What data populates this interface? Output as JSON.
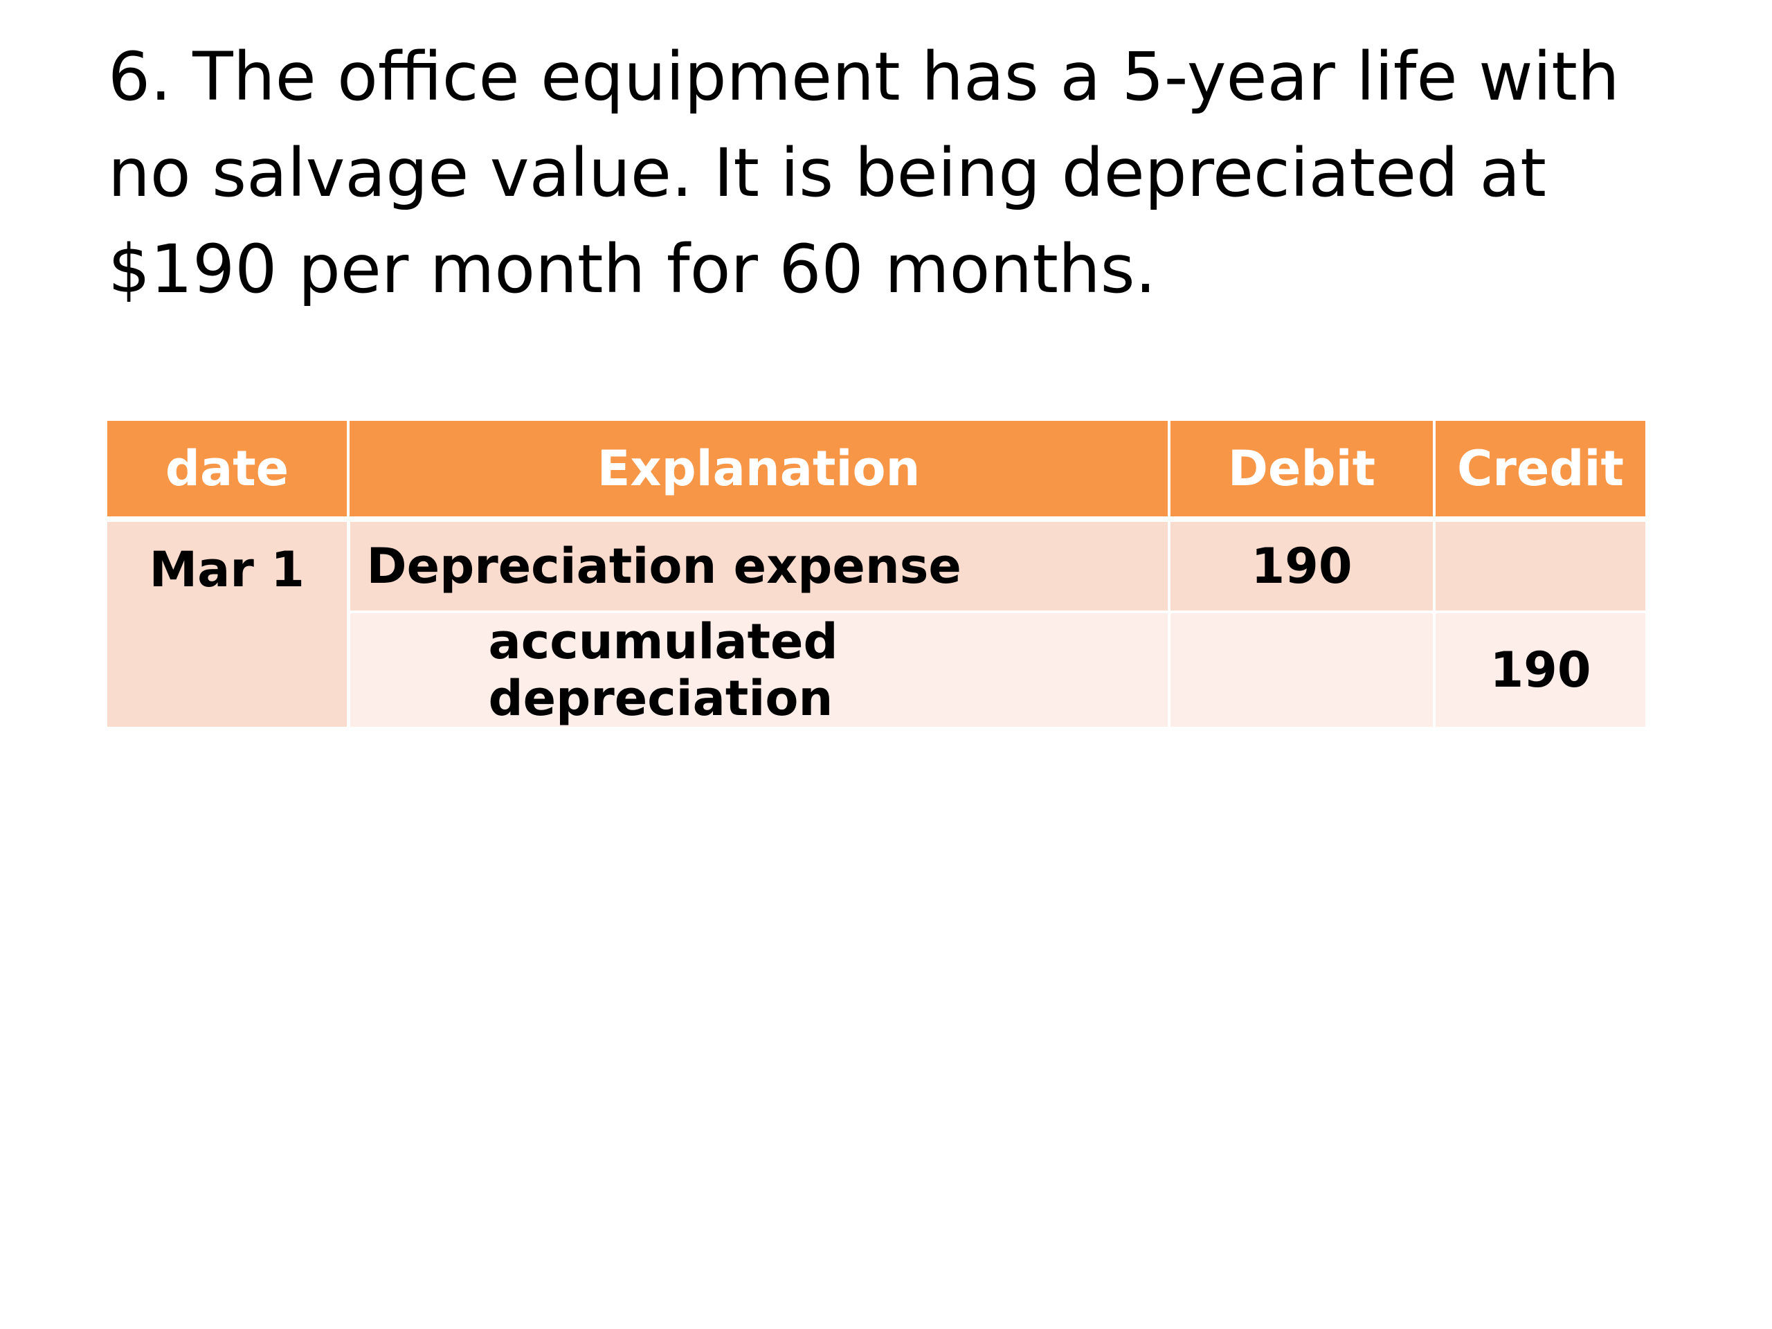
{
  "problem": {
    "text": "6. The office equipment has a 5-year life with no salvage value. It is being depreciated at $190 per month for 60 months."
  },
  "journal": {
    "headers": {
      "date": "date",
      "explanation": "Explanation",
      "debit": "Debit",
      "credit": "Credit"
    },
    "entry": {
      "date": "Mar 1",
      "lines": [
        {
          "explanation": "Depreciation expense",
          "debit": "190",
          "credit": ""
        },
        {
          "explanation": "accumulated depreciation",
          "debit": "",
          "credit": "190"
        }
      ]
    }
  },
  "colors": {
    "header_bg": "#f79646",
    "header_text": "#ffffff",
    "row_band_dark": "#fadccf",
    "row_band_light": "#fdeeea"
  }
}
